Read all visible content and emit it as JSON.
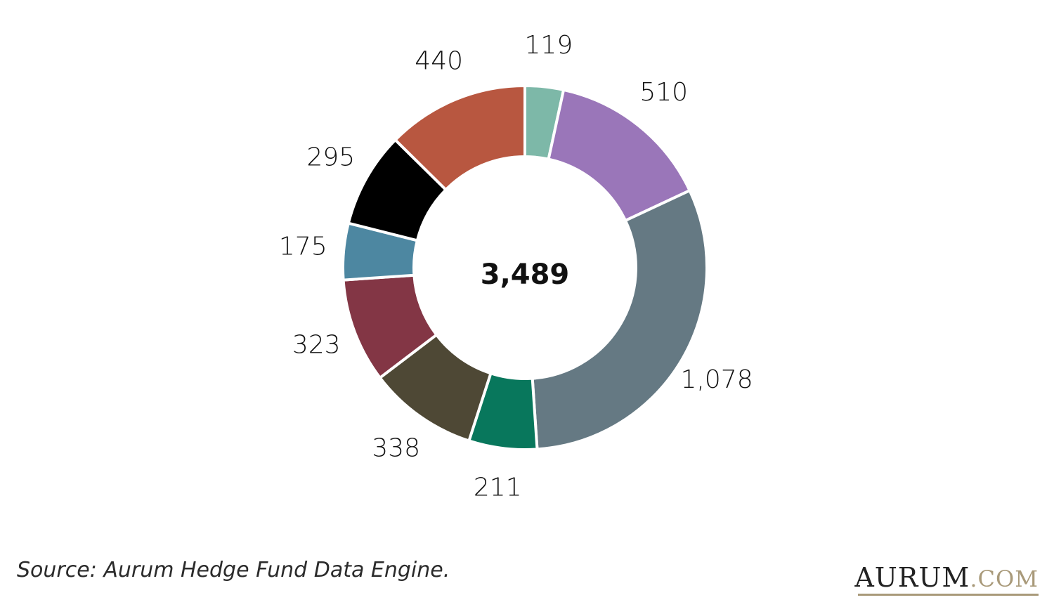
{
  "chart_data": {
    "type": "donut",
    "title": "",
    "total_label": "3,489",
    "slices": [
      {
        "label": "119",
        "value": 119,
        "color": "#7db8a8"
      },
      {
        "label": "510",
        "value": 510,
        "color": "#9a76b9"
      },
      {
        "label": "1,078",
        "value": 1078,
        "color": "#657983"
      },
      {
        "label": "211",
        "value": 211,
        "color": "#08775c"
      },
      {
        "label": "338",
        "value": 338,
        "color": "#4e4835"
      },
      {
        "label": "323",
        "value": 323,
        "color": "#833645"
      },
      {
        "label": "175",
        "value": 175,
        "color": "#4d87a1"
      },
      {
        "label": "295",
        "value": 295,
        "color": "#000000"
      },
      {
        "label": "440",
        "value": 440,
        "color": "#b85740"
      }
    ],
    "legend": "none"
  },
  "footer": {
    "source": "Source: Aurum Hedge Fund Data Engine.",
    "brand_name": "AURUM",
    "brand_tld": ".COM"
  }
}
